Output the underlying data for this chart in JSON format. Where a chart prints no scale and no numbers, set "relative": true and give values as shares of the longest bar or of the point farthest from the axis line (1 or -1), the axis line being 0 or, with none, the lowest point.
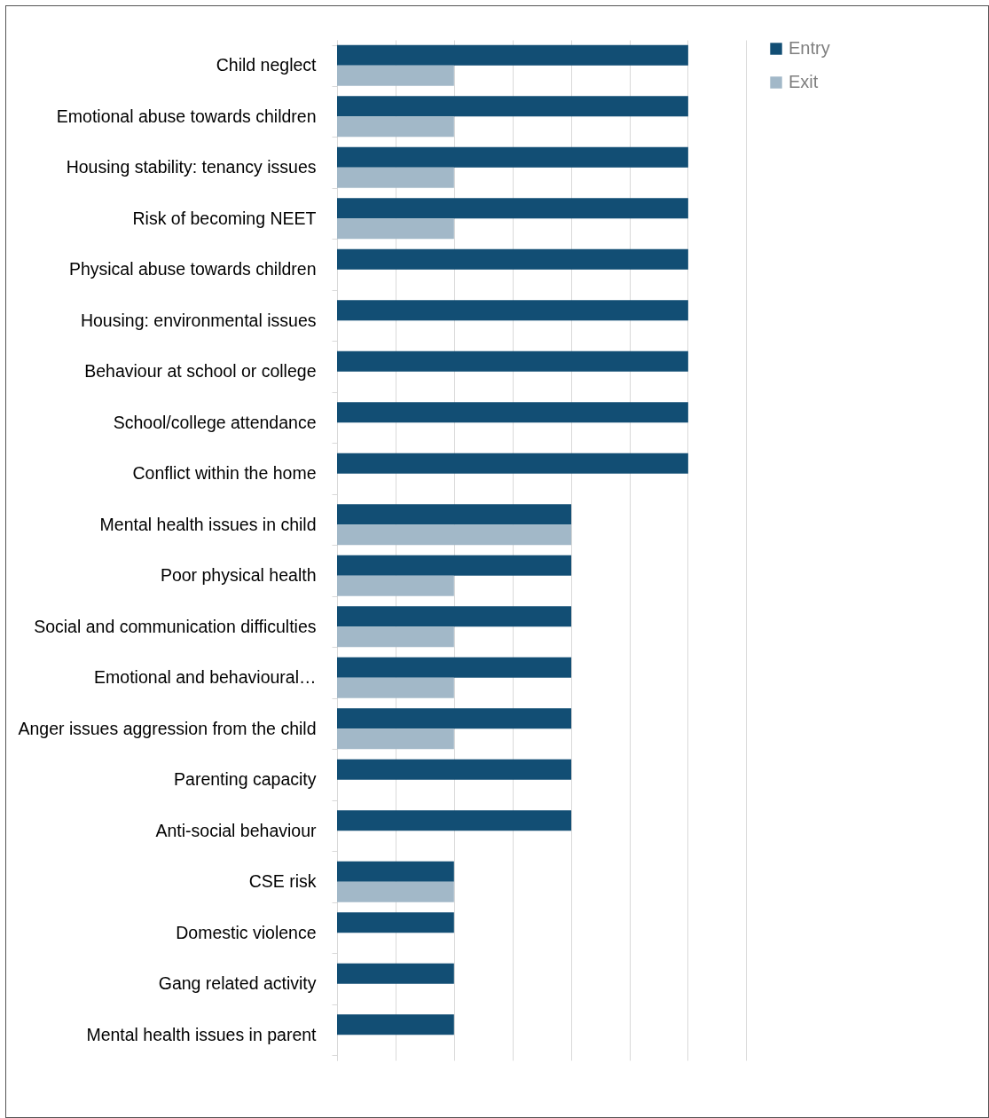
{
  "chart_data": {
    "type": "bar",
    "orientation": "horizontal",
    "relative": true,
    "grid": "x",
    "legend": "right",
    "categories": [
      "Child neglect",
      "Emotional abuse towards children",
      "Housing stability: tenancy issues",
      "Risk of becoming NEET",
      "Physical abuse towards children",
      "Housing: environmental issues",
      "Behaviour at school or college",
      "School/college attendance",
      "Conflict within the home",
      "Mental health issues in child",
      "Poor physical health",
      "Social and communication difficulties",
      "Emotional and behavioural…",
      "Anger issues aggression from the child",
      "Parenting capacity",
      "Anti-social behaviour",
      "CSE risk",
      "Domestic violence",
      "Gang related activity",
      "Mental health issues in parent"
    ],
    "series": [
      {
        "name": "Entry",
        "color": "#124e74",
        "values": [
          1,
          1,
          1,
          1,
          1,
          1,
          1,
          1,
          1,
          0.667,
          0.667,
          0.667,
          0.667,
          0.667,
          0.667,
          0.667,
          0.333,
          0.333,
          0.333,
          0.333
        ]
      },
      {
        "name": "Exit",
        "color": "#a2b8c8",
        "values": [
          0.333,
          0.333,
          0.333,
          0.333,
          null,
          null,
          null,
          null,
          null,
          0.667,
          0.333,
          0.333,
          0.333,
          0.333,
          null,
          null,
          0.333,
          null,
          null,
          null
        ]
      }
    ]
  }
}
